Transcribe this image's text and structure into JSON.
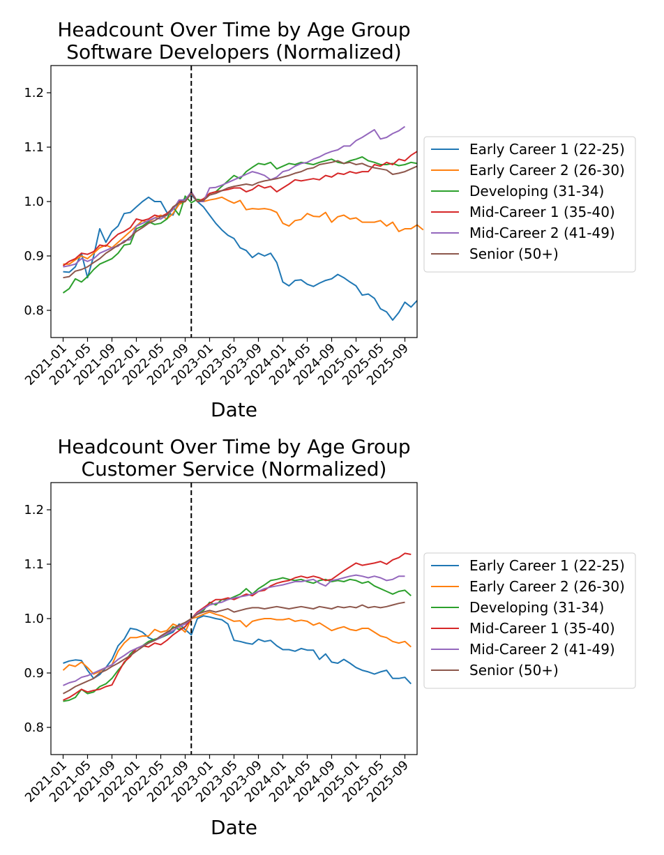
{
  "chart_data": [
    {
      "type": "line",
      "title": "Headcount Over Time by Age Group",
      "subtitle": "Software Developers (Normalized)",
      "xlabel": "Date",
      "ylabel": "",
      "x_ticks": [
        "2021-01",
        "2021-05",
        "2021-09",
        "2022-01",
        "2022-05",
        "2022-09",
        "2023-01",
        "2023-05",
        "2023-09",
        "2024-01",
        "2024-05",
        "2024-09",
        "2025-01",
        "2025-05",
        "2025-09"
      ],
      "y_ticks": [
        "0.8",
        "0.9",
        "1.0",
        "1.1",
        "1.2"
      ],
      "ylim": [
        0.75,
        1.25
      ],
      "xlim": [
        "2020-11",
        "2025-11"
      ],
      "reference_line": "2022-10",
      "grid": false,
      "legend": "right",
      "series": [
        {
          "name": "Early Career 1 (22-25)",
          "color": "#1f77b4",
          "values": [
            0.871,
            0.87,
            0.88,
            0.905,
            0.86,
            0.9,
            0.95,
            0.925,
            0.945,
            0.955,
            0.978,
            0.98,
            0.99,
            1.0,
            1.008,
            1.0,
            1.0,
            0.98,
            0.975,
            1.0,
            1.005,
            1.012,
            1.0,
            0.99,
            0.975,
            0.96,
            0.948,
            0.938,
            0.932,
            0.915,
            0.91,
            0.897,
            0.905,
            0.9,
            0.905,
            0.888,
            0.852,
            0.845,
            0.855,
            0.856,
            0.848,
            0.844,
            0.85,
            0.855,
            0.858,
            0.866,
            0.86,
            0.852,
            0.845,
            0.828,
            0.83,
            0.822,
            0.803,
            0.797,
            0.782,
            0.796,
            0.815,
            0.806,
            0.818
          ]
        },
        {
          "name": "Early Career 2 (26-30)",
          "color": "#ff7f0e",
          "values": [
            0.885,
            0.885,
            0.893,
            0.9,
            0.895,
            0.905,
            0.915,
            0.92,
            0.915,
            0.925,
            0.935,
            0.945,
            0.955,
            0.965,
            0.962,
            0.97,
            0.975,
            0.968,
            0.978,
            0.995,
            1.0,
            1.015,
            1.0,
            1.0,
            1.003,
            1.005,
            1.008,
            1.002,
            0.997,
            1.002,
            0.985,
            0.987,
            0.986,
            0.987,
            0.985,
            0.98,
            0.96,
            0.955,
            0.965,
            0.967,
            0.978,
            0.973,
            0.972,
            0.98,
            0.962,
            0.972,
            0.975,
            0.968,
            0.97,
            0.962,
            0.962,
            0.962,
            0.965,
            0.955,
            0.962,
            0.945,
            0.95,
            0.95,
            0.957,
            0.948
          ]
        },
        {
          "name": "Developing (31-34)",
          "color": "#2ca02c",
          "values": [
            0.832,
            0.84,
            0.858,
            0.852,
            0.862,
            0.875,
            0.885,
            0.89,
            0.895,
            0.905,
            0.92,
            0.922,
            0.95,
            0.955,
            0.963,
            0.958,
            0.96,
            0.968,
            0.99,
            0.975,
            1.01,
            0.998,
            1.004,
            1.002,
            1.015,
            1.018,
            1.028,
            1.038,
            1.048,
            1.042,
            1.055,
            1.063,
            1.07,
            1.068,
            1.072,
            1.06,
            1.065,
            1.07,
            1.068,
            1.072,
            1.07,
            1.068,
            1.072,
            1.075,
            1.078,
            1.072,
            1.07,
            1.075,
            1.078,
            1.082,
            1.075,
            1.072,
            1.068,
            1.068,
            1.07,
            1.066,
            1.068,
            1.072,
            1.07
          ]
        },
        {
          "name": "Mid-Career 1 (35-40)",
          "color": "#d62728",
          "values": [
            0.882,
            0.89,
            0.895,
            0.905,
            0.903,
            0.908,
            0.92,
            0.918,
            0.93,
            0.94,
            0.945,
            0.952,
            0.968,
            0.965,
            0.968,
            0.975,
            0.972,
            0.978,
            0.988,
            1.0,
            1.0,
            1.018,
            1.0,
            1.005,
            1.015,
            1.018,
            1.02,
            1.022,
            1.025,
            1.025,
            1.018,
            1.022,
            1.03,
            1.025,
            1.028,
            1.018,
            1.025,
            1.032,
            1.04,
            1.038,
            1.04,
            1.042,
            1.04,
            1.048,
            1.045,
            1.052,
            1.05,
            1.055,
            1.052,
            1.055,
            1.055,
            1.068,
            1.065,
            1.072,
            1.068,
            1.078,
            1.075,
            1.085,
            1.092
          ]
        },
        {
          "name": "Mid-Career 2 (41-49)",
          "color": "#9467bd",
          "values": [
            0.88,
            0.882,
            0.885,
            0.895,
            0.89,
            0.895,
            0.905,
            0.91,
            0.915,
            0.918,
            0.928,
            0.93,
            0.955,
            0.96,
            0.965,
            0.97,
            0.968,
            0.975,
            0.985,
            1.003,
            1.003,
            1.018,
            1.0,
            1.0,
            1.025,
            1.026,
            1.03,
            1.035,
            1.04,
            1.045,
            1.05,
            1.055,
            1.052,
            1.048,
            1.04,
            1.045,
            1.055,
            1.058,
            1.065,
            1.07,
            1.072,
            1.078,
            1.082,
            1.088,
            1.092,
            1.095,
            1.102,
            1.102,
            1.112,
            1.118,
            1.125,
            1.132,
            1.115,
            1.118,
            1.125,
            1.13,
            1.138
          ]
        },
        {
          "name": "Senior (50+)",
          "color": "#8c564b",
          "values": [
            0.86,
            0.862,
            0.872,
            0.875,
            0.88,
            0.888,
            0.895,
            0.905,
            0.912,
            0.92,
            0.925,
            0.935,
            0.945,
            0.952,
            0.96,
            0.965,
            0.972,
            0.975,
            0.99,
            0.998,
            1.0,
            1.015,
            1.0,
            1.002,
            1.012,
            1.015,
            1.02,
            1.025,
            1.028,
            1.03,
            1.032,
            1.03,
            1.035,
            1.038,
            1.04,
            1.042,
            1.045,
            1.048,
            1.052,
            1.055,
            1.06,
            1.062,
            1.068,
            1.07,
            1.072,
            1.075,
            1.07,
            1.072,
            1.068,
            1.07,
            1.065,
            1.062,
            1.06,
            1.058,
            1.05,
            1.052,
            1.055,
            1.06,
            1.065
          ]
        }
      ]
    },
    {
      "type": "line",
      "title": "Headcount Over Time by Age Group",
      "subtitle": "Customer Service (Normalized)",
      "xlabel": "Date",
      "ylabel": "",
      "x_ticks": [
        "2021-01",
        "2021-05",
        "2021-09",
        "2022-01",
        "2022-05",
        "2022-09",
        "2023-01",
        "2023-05",
        "2023-09",
        "2024-01",
        "2024-05",
        "2024-09",
        "2025-01",
        "2025-05",
        "2025-09"
      ],
      "y_ticks": [
        "0.8",
        "0.9",
        "1.0",
        "1.1",
        "1.2"
      ],
      "ylim": [
        0.75,
        1.25
      ],
      "xlim": [
        "2020-11",
        "2025-11"
      ],
      "reference_line": "2022-10",
      "grid": false,
      "legend": "right",
      "series": [
        {
          "name": "Early Career 1 (22-25)",
          "color": "#1f77b4",
          "values": [
            0.918,
            0.922,
            0.924,
            0.923,
            0.905,
            0.89,
            0.897,
            0.91,
            0.925,
            0.95,
            0.962,
            0.982,
            0.98,
            0.975,
            0.965,
            0.96,
            0.965,
            0.97,
            0.975,
            0.99,
            0.98,
            0.97,
            1.0,
            1.005,
            1.003,
            1.0,
            0.998,
            0.99,
            0.96,
            0.958,
            0.955,
            0.953,
            0.962,
            0.958,
            0.96,
            0.95,
            0.943,
            0.943,
            0.94,
            0.945,
            0.942,
            0.942,
            0.925,
            0.935,
            0.92,
            0.918,
            0.925,
            0.918,
            0.91,
            0.905,
            0.902,
            0.898,
            0.902,
            0.905,
            0.89,
            0.89,
            0.892,
            0.88
          ]
        },
        {
          "name": "Early Career 2 (26-30)",
          "color": "#ff7f0e",
          "values": [
            0.905,
            0.915,
            0.912,
            0.92,
            0.91,
            0.898,
            0.903,
            0.91,
            0.915,
            0.94,
            0.955,
            0.965,
            0.965,
            0.968,
            0.968,
            0.98,
            0.975,
            0.978,
            0.99,
            0.985,
            0.975,
            1.0,
            1.003,
            1.008,
            1.012,
            1.008,
            1.005,
            1.0,
            0.995,
            0.996,
            0.985,
            0.995,
            0.998,
            1.0,
            1.0,
            0.998,
            0.998,
            1.0,
            0.995,
            0.997,
            0.995,
            0.988,
            0.992,
            0.985,
            0.978,
            0.982,
            0.985,
            0.98,
            0.978,
            0.982,
            0.982,
            0.975,
            0.968,
            0.965,
            0.958,
            0.955,
            0.958,
            0.948
          ]
        },
        {
          "name": "Developing (31-34)",
          "color": "#2ca02c",
          "values": [
            0.848,
            0.85,
            0.855,
            0.87,
            0.862,
            0.865,
            0.875,
            0.88,
            0.89,
            0.905,
            0.918,
            0.935,
            0.945,
            0.95,
            0.958,
            0.962,
            0.965,
            0.97,
            0.985,
            0.98,
            0.985,
            1.0,
            1.01,
            1.015,
            1.03,
            1.025,
            1.035,
            1.035,
            1.04,
            1.045,
            1.055,
            1.045,
            1.055,
            1.062,
            1.07,
            1.072,
            1.075,
            1.072,
            1.07,
            1.072,
            1.068,
            1.065,
            1.07,
            1.072,
            1.068,
            1.07,
            1.068,
            1.072,
            1.07,
            1.065,
            1.068,
            1.06,
            1.055,
            1.05,
            1.045,
            1.05,
            1.052,
            1.042
          ]
        },
        {
          "name": "Mid-Career 1 (35-40)",
          "color": "#d62728",
          "values": [
            0.85,
            0.855,
            0.862,
            0.87,
            0.865,
            0.868,
            0.87,
            0.875,
            0.878,
            0.9,
            0.92,
            0.93,
            0.945,
            0.95,
            0.948,
            0.955,
            0.952,
            0.96,
            0.97,
            0.978,
            0.985,
            1.0,
            1.012,
            1.02,
            1.028,
            1.035,
            1.035,
            1.038,
            1.035,
            1.04,
            1.045,
            1.042,
            1.05,
            1.052,
            1.06,
            1.065,
            1.068,
            1.07,
            1.075,
            1.078,
            1.075,
            1.078,
            1.075,
            1.07,
            1.072,
            1.08,
            1.088,
            1.095,
            1.102,
            1.098,
            1.1,
            1.102,
            1.105,
            1.1,
            1.108,
            1.112,
            1.12,
            1.118
          ]
        },
        {
          "name": "Mid-Career 2 (41-49)",
          "color": "#9467bd",
          "values": [
            0.877,
            0.882,
            0.885,
            0.892,
            0.895,
            0.9,
            0.905,
            0.91,
            0.915,
            0.925,
            0.932,
            0.94,
            0.945,
            0.95,
            0.955,
            0.96,
            0.965,
            0.972,
            0.978,
            0.985,
            0.99,
            1.0,
            1.01,
            1.018,
            1.025,
            1.028,
            1.03,
            1.035,
            1.038,
            1.04,
            1.042,
            1.045,
            1.05,
            1.055,
            1.058,
            1.06,
            1.062,
            1.065,
            1.068,
            1.068,
            1.07,
            1.072,
            1.065,
            1.06,
            1.07,
            1.072,
            1.075,
            1.078,
            1.08,
            1.078,
            1.075,
            1.078,
            1.075,
            1.07,
            1.072,
            1.078,
            1.078
          ]
        },
        {
          "name": "Senior (50+)",
          "color": "#8c564b",
          "values": [
            0.862,
            0.868,
            0.875,
            0.88,
            0.885,
            0.89,
            0.9,
            0.905,
            0.912,
            0.918,
            0.925,
            0.932,
            0.94,
            0.948,
            0.955,
            0.96,
            0.968,
            0.975,
            0.982,
            0.988,
            0.993,
            1.0,
            1.008,
            1.012,
            1.015,
            1.012,
            1.015,
            1.018,
            1.012,
            1.015,
            1.018,
            1.02,
            1.02,
            1.018,
            1.02,
            1.022,
            1.02,
            1.018,
            1.02,
            1.022,
            1.02,
            1.018,
            1.022,
            1.02,
            1.018,
            1.022,
            1.02,
            1.022,
            1.02,
            1.025,
            1.02,
            1.022,
            1.02,
            1.022,
            1.025,
            1.028,
            1.03
          ]
        }
      ]
    }
  ]
}
